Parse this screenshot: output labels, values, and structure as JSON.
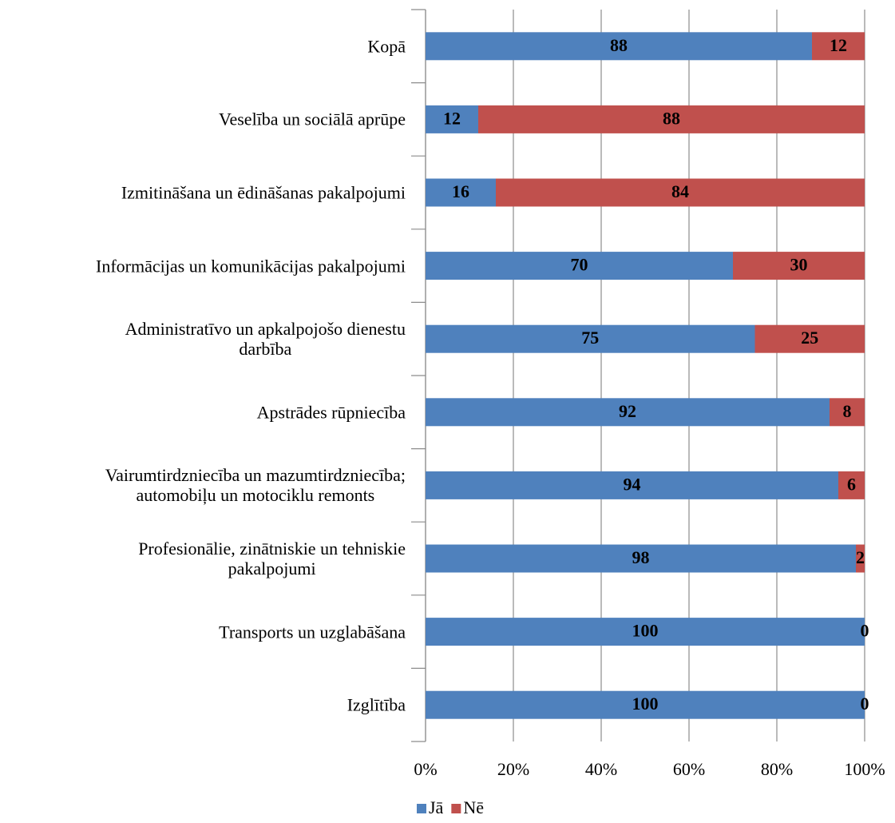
{
  "chart_data": {
    "type": "stacked_bar_horizontal",
    "categories": [
      "Kopā",
      "Veselība un sociālā aprūpe",
      "Izmitināšana un ēdināšanas pakalpojumi",
      "Informācijas un komunikācijas pakalpojumi",
      "Administratīvo un apkalpojošo dienestu\ndarbība",
      "Apstrādes rūpniecība",
      "Vairumtirdzniecība un mazumtirdzniecība;\nautomobiļu un motociklu remonts",
      "Profesionālie, zinātniskie un tehniskie\npakalpojumi",
      "Transports un uzglabāšana",
      "Izglītība"
    ],
    "series": [
      {
        "name": "Jā",
        "color": "#4f81bd",
        "values": [
          88,
          12,
          16,
          70,
          75,
          92,
          94,
          98,
          100,
          100
        ]
      },
      {
        "name": "Nē",
        "color": "#c0504d",
        "values": [
          12,
          88,
          84,
          30,
          25,
          8,
          6,
          2,
          0,
          0
        ]
      }
    ],
    "xlim": [
      0,
      100
    ],
    "xticks": [
      {
        "value": 0,
        "label": "0%"
      },
      {
        "value": 20,
        "label": "20%"
      },
      {
        "value": 40,
        "label": "40%"
      },
      {
        "value": 60,
        "label": "60%"
      },
      {
        "value": 80,
        "label": "80%"
      },
      {
        "value": 100,
        "label": "100%"
      }
    ],
    "grid": true,
    "legend": "bottom"
  }
}
